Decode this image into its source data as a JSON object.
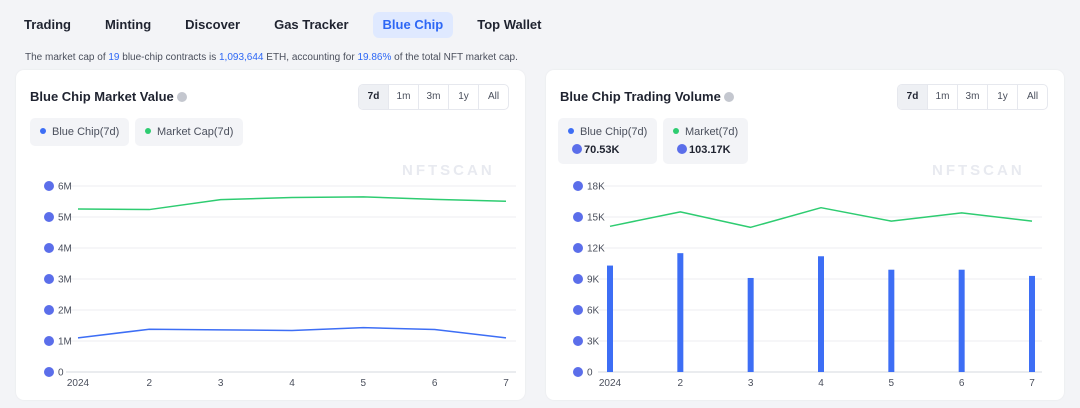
{
  "tabs": [
    "Trading",
    "Minting",
    "Discover",
    "Gas Tracker",
    "Blue Chip",
    "Top Wallet"
  ],
  "active_tab": "Blue Chip",
  "summary": {
    "p1": "The market cap of ",
    "count": "19",
    "p2": " blue-chip contracts is ",
    "mcap": "1,093,644",
    "p3": " ETH, accounting for ",
    "pct": "19.86%",
    "p4": " of the total NFT market cap."
  },
  "ranges": [
    "7d",
    "1m",
    "3m",
    "1y",
    "All"
  ],
  "colors": {
    "blue": "#3d6ef5",
    "green": "#2ecc71",
    "grid": "#eceef2",
    "eth": "#5b6eea"
  },
  "watermark": "NFTSCAN",
  "left_card": {
    "title": "Blue Chip Market Value",
    "legend": [
      {
        "label": "Blue Chip(7d)",
        "color": "#3d6ef5"
      },
      {
        "label": "Market Cap(7d)",
        "color": "#2ecc71"
      }
    ]
  },
  "right_card": {
    "title": "Blue Chip Trading Volume",
    "legend": [
      {
        "label": "Blue Chip(7d)",
        "color": "#3d6ef5",
        "value": "70.53K"
      },
      {
        "label": "Market(7d)",
        "color": "#2ecc71",
        "value": "103.17K"
      }
    ]
  },
  "chart_data": [
    {
      "type": "line",
      "title": "Blue Chip Market Value",
      "categories": [
        "2024",
        "2",
        "3",
        "4",
        "5",
        "6",
        "7"
      ],
      "ylim": [
        0,
        6000000
      ],
      "yticks": [
        "0",
        "1M",
        "2M",
        "3M",
        "4M",
        "5M",
        "6M"
      ],
      "grid": true,
      "series": [
        {
          "name": "Blue Chip(7d)",
          "color": "#3d6ef5",
          "values": [
            1100000,
            1380000,
            1360000,
            1340000,
            1430000,
            1370000,
            1100000
          ]
        },
        {
          "name": "Market Cap(7d)",
          "color": "#2ecc71",
          "values": [
            5260000,
            5240000,
            5560000,
            5630000,
            5650000,
            5570000,
            5510000
          ]
        }
      ]
    },
    {
      "type": "bar",
      "title": "Blue Chip Trading Volume",
      "categories": [
        "2024",
        "2",
        "3",
        "4",
        "5",
        "6",
        "7"
      ],
      "ylim": [
        0,
        18000
      ],
      "yticks": [
        "0",
        "3K",
        "6K",
        "9K",
        "12K",
        "15K",
        "18K"
      ],
      "grid": true,
      "series": [
        {
          "name": "Blue Chip(7d)",
          "type": "bar",
          "color": "#3d6ef5",
          "values": [
            10300,
            11500,
            9100,
            11200,
            9900,
            9900,
            9300
          ]
        },
        {
          "name": "Market(7d)",
          "type": "line",
          "color": "#2ecc71",
          "values": [
            14100,
            15500,
            14000,
            15900,
            14600,
            15400,
            14600
          ]
        }
      ]
    }
  ]
}
